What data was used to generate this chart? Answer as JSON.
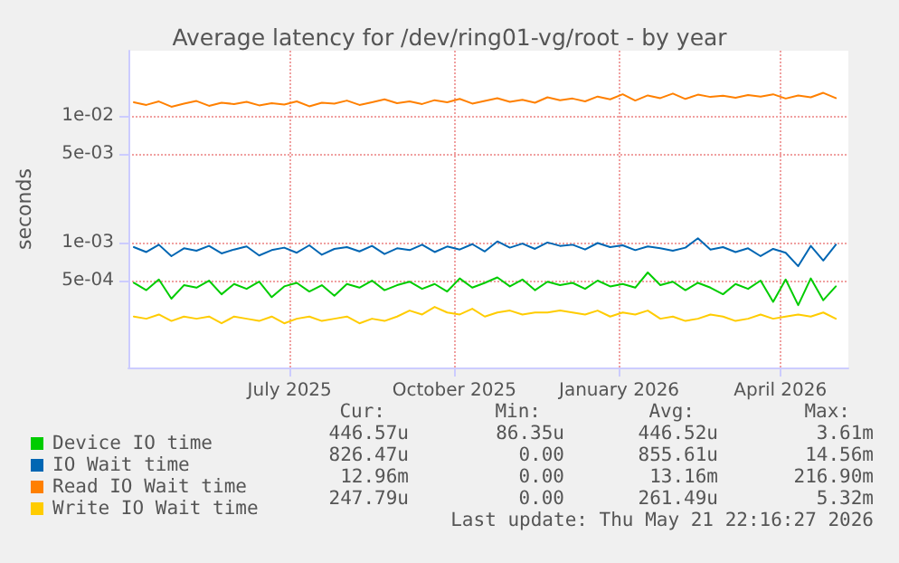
{
  "chart_data": {
    "type": "line",
    "title": "Average latency for /dev/ring01-vg/root - by year",
    "ylabel": "seconds",
    "log": "y",
    "grid": true,
    "legend": "bottom left",
    "marker": "none",
    "line_style": "solid",
    "xlim": [
      "2025-04-02",
      "2026-05-09"
    ],
    "xticks": [
      {
        "value": "2025-07-01",
        "label": "July 2025"
      },
      {
        "value": "2025-10-01",
        "label": "October 2025"
      },
      {
        "value": "2026-01-01",
        "label": "January 2026"
      },
      {
        "value": "2026-04-01",
        "label": "April 2026"
      }
    ],
    "ylim": [
      0.000103,
      0.0327
    ],
    "yticks": [
      {
        "value": 0.0005,
        "label": "5e-04"
      },
      {
        "value": 0.001,
        "label": "1e-03"
      },
      {
        "value": 0.005,
        "label": "5e-03"
      },
      {
        "value": 0.01,
        "label": "1e-02"
      }
    ],
    "x": [
      "2025-04-05",
      "2025-04-12",
      "2025-04-19",
      "2025-04-26",
      "2025-05-03",
      "2025-05-10",
      "2025-05-17",
      "2025-05-24",
      "2025-05-31",
      "2025-06-07",
      "2025-06-14",
      "2025-06-21",
      "2025-06-28",
      "2025-07-05",
      "2025-07-12",
      "2025-07-19",
      "2025-07-26",
      "2025-08-02",
      "2025-08-09",
      "2025-08-16",
      "2025-08-23",
      "2025-08-30",
      "2025-09-06",
      "2025-09-13",
      "2025-09-20",
      "2025-09-27",
      "2025-10-04",
      "2025-10-11",
      "2025-10-18",
      "2025-10-25",
      "2025-11-01",
      "2025-11-08",
      "2025-11-15",
      "2025-11-22",
      "2025-11-29",
      "2025-12-06",
      "2025-12-13",
      "2025-12-20",
      "2025-12-27",
      "2026-01-03",
      "2026-01-10",
      "2026-01-17",
      "2026-01-24",
      "2026-01-31",
      "2026-02-07",
      "2026-02-14",
      "2026-02-21",
      "2026-02-28",
      "2026-03-07",
      "2026-03-14",
      "2026-03-21",
      "2026-03-28",
      "2026-04-04",
      "2026-04-11",
      "2026-04-18",
      "2026-04-25",
      "2026-05-02"
    ],
    "series": [
      {
        "name": "Device IO time",
        "color": "#00cc00",
        "values": [
          0.00048,
          0.00042,
          0.00051,
          0.00036,
          0.00046,
          0.00044,
          0.0005,
          0.00039,
          0.00047,
          0.00043,
          0.00049,
          0.00037,
          0.00045,
          0.00048,
          0.00041,
          0.00046,
          0.00038,
          0.00047,
          0.00044,
          0.0005,
          0.00042,
          0.00046,
          0.00049,
          0.00043,
          0.00047,
          0.00041,
          0.00052,
          0.00044,
          0.00048,
          0.00053,
          0.00045,
          0.00051,
          0.00042,
          0.00049,
          0.00046,
          0.00048,
          0.00043,
          0.0005,
          0.00045,
          0.00047,
          0.00044,
          0.00058,
          0.00046,
          0.00049,
          0.00042,
          0.00048,
          0.00044,
          0.00039,
          0.00047,
          0.00043,
          0.0005,
          0.00034,
          0.00051,
          0.00032,
          0.00052,
          0.00035,
          0.00045
        ]
      },
      {
        "name": "IO Wait time",
        "color": "#0066b3",
        "values": [
          0.00092,
          0.00084,
          0.00096,
          0.00078,
          0.0009,
          0.00086,
          0.00094,
          0.00082,
          0.00088,
          0.00093,
          0.00079,
          0.00087,
          0.00091,
          0.00083,
          0.00095,
          0.0008,
          0.00089,
          0.00092,
          0.00085,
          0.00094,
          0.00081,
          0.0009,
          0.00087,
          0.00096,
          0.00084,
          0.00093,
          0.00088,
          0.00097,
          0.00085,
          0.00102,
          0.00091,
          0.00098,
          0.00089,
          0.001,
          0.00094,
          0.00096,
          0.00088,
          0.00099,
          0.00092,
          0.00095,
          0.00087,
          0.00093,
          0.0009,
          0.00086,
          0.00091,
          0.00108,
          0.00088,
          0.00092,
          0.00084,
          0.0009,
          0.00078,
          0.00089,
          0.00083,
          0.00065,
          0.00094,
          0.00072,
          0.00096
        ]
      },
      {
        "name": "Read IO Wait time",
        "color": "#ff8000",
        "values": [
          0.0128,
          0.0122,
          0.013,
          0.0118,
          0.0125,
          0.0131,
          0.012,
          0.0127,
          0.0124,
          0.0129,
          0.0121,
          0.0126,
          0.0123,
          0.013,
          0.0119,
          0.0127,
          0.0125,
          0.0132,
          0.0122,
          0.0128,
          0.0135,
          0.0126,
          0.013,
          0.0124,
          0.0133,
          0.0128,
          0.0136,
          0.0125,
          0.0131,
          0.0138,
          0.0129,
          0.0134,
          0.0127,
          0.014,
          0.0133,
          0.0137,
          0.013,
          0.0142,
          0.0135,
          0.0148,
          0.0132,
          0.0145,
          0.0138,
          0.015,
          0.0136,
          0.0147,
          0.0141,
          0.0144,
          0.0139,
          0.0146,
          0.0142,
          0.0148,
          0.0137,
          0.0145,
          0.014,
          0.0152,
          0.0138
        ]
      },
      {
        "name": "Write IO Wait time",
        "color": "#ffcc00",
        "values": [
          0.00026,
          0.00025,
          0.00027,
          0.00024,
          0.00026,
          0.00025,
          0.00026,
          0.00023,
          0.00026,
          0.00025,
          0.00024,
          0.00026,
          0.00023,
          0.00025,
          0.00026,
          0.00024,
          0.00025,
          0.00026,
          0.00023,
          0.00025,
          0.00024,
          0.00026,
          0.00029,
          0.00027,
          0.00031,
          0.00028,
          0.00027,
          0.0003,
          0.00026,
          0.00028,
          0.00029,
          0.00027,
          0.00028,
          0.00028,
          0.00029,
          0.00028,
          0.00027,
          0.00029,
          0.00026,
          0.00028,
          0.00027,
          0.00029,
          0.00025,
          0.00026,
          0.00024,
          0.00025,
          0.00027,
          0.00026,
          0.00024,
          0.00025,
          0.00027,
          0.00025,
          0.00026,
          0.00027,
          0.00026,
          0.00028,
          0.00025
        ]
      }
    ],
    "annotations": [
      "Cur:",
      "Min:",
      "Avg:",
      "Max:",
      "446.57u",
      "86.35u",
      "446.52u",
      "3.61m",
      "826.47u",
      "0.00",
      "855.61u",
      "14.56m",
      "12.96m",
      "0.00",
      "13.16m",
      "216.90m",
      "247.79u",
      "0.00",
      "261.49u",
      "5.32m",
      "Last update: Thu May 21 22:16:27 2026"
    ]
  }
}
